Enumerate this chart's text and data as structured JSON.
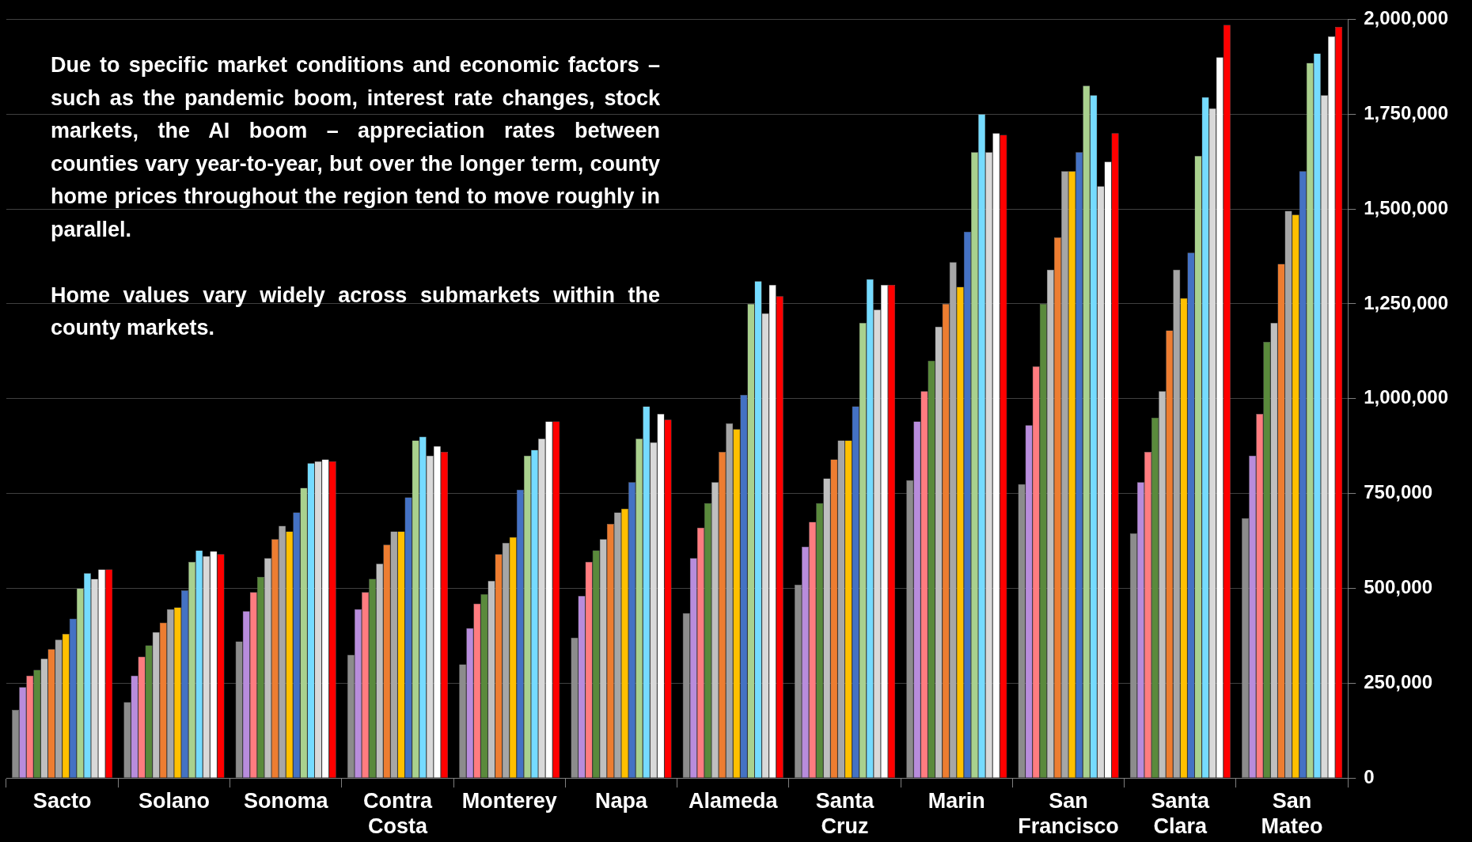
{
  "chart_data": {
    "type": "bar",
    "categories": [
      "Sacto",
      "Solano",
      "Sonoma",
      "Contra Costa",
      "Monterey",
      "Napa",
      "Alameda",
      "Santa Cruz",
      "Marin",
      "San Francisco",
      "Santa Clara",
      "San Mateo"
    ],
    "series": [
      {
        "color": "#8c8c8c",
        "values": [
          180000,
          200000,
          360000,
          325000,
          300000,
          370000,
          435000,
          510000,
          785000,
          775000,
          645000,
          685000
        ]
      },
      {
        "color": "#b88cdc",
        "values": [
          240000,
          270000,
          440000,
          445000,
          395000,
          480000,
          580000,
          610000,
          940000,
          930000,
          780000,
          850000
        ]
      },
      {
        "color": "#ff7c80",
        "values": [
          270000,
          320000,
          490000,
          490000,
          460000,
          570000,
          660000,
          675000,
          1020000,
          1085000,
          860000,
          960000
        ]
      },
      {
        "color": "#5a8a3c",
        "values": [
          285000,
          350000,
          530000,
          525000,
          485000,
          600000,
          725000,
          725000,
          1100000,
          1250000,
          950000,
          1150000
        ]
      },
      {
        "color": "#bfbfbf",
        "values": [
          315000,
          385000,
          580000,
          565000,
          520000,
          630000,
          780000,
          790000,
          1190000,
          1340000,
          1020000,
          1200000
        ]
      },
      {
        "color": "#ed7d31",
        "values": [
          340000,
          410000,
          630000,
          615000,
          590000,
          670000,
          860000,
          840000,
          1250000,
          1425000,
          1180000,
          1355000
        ]
      },
      {
        "color": "#a6a6a6",
        "values": [
          365000,
          445000,
          665000,
          650000,
          620000,
          700000,
          935000,
          890000,
          1360000,
          1600000,
          1340000,
          1495000
        ]
      },
      {
        "color": "#ffc000",
        "values": [
          380000,
          450000,
          650000,
          650000,
          635000,
          710000,
          920000,
          890000,
          1295000,
          1600000,
          1265000,
          1485000
        ]
      },
      {
        "color": "#4472c4",
        "values": [
          420000,
          495000,
          700000,
          740000,
          760000,
          780000,
          1010000,
          980000,
          1440000,
          1650000,
          1385000,
          1600000
        ]
      },
      {
        "color": "#a9d18e",
        "values": [
          500000,
          570000,
          765000,
          890000,
          850000,
          895000,
          1250000,
          1200000,
          1650000,
          1825000,
          1640000,
          1885000
        ]
      },
      {
        "color": "#75dbff",
        "values": [
          540000,
          600000,
          830000,
          900000,
          865000,
          980000,
          1310000,
          1315000,
          1750000,
          1800000,
          1795000,
          1910000
        ]
      },
      {
        "color": "#d9d9d9",
        "values": [
          525000,
          585000,
          835000,
          850000,
          895000,
          885000,
          1225000,
          1235000,
          1650000,
          1560000,
          1765000,
          1800000
        ]
      },
      {
        "color": "#ffffff",
        "values": [
          550000,
          598000,
          840000,
          875000,
          940000,
          960000,
          1300000,
          1300000,
          1700000,
          1625000,
          1900000,
          1955000
        ]
      },
      {
        "color": "#ff0000",
        "values": [
          550000,
          590000,
          835000,
          860000,
          940000,
          945000,
          1270000,
          1300000,
          1695000,
          1700000,
          1985000,
          1980000
        ]
      }
    ],
    "ylim": [
      0,
      2000000
    ],
    "yticks": [
      {
        "value": 0,
        "label": "0"
      },
      {
        "value": 250000,
        "label": "250,000"
      },
      {
        "value": 500000,
        "label": "500,000"
      },
      {
        "value": 750000,
        "label": "750,000"
      },
      {
        "value": 1000000,
        "label": "1,000,000"
      },
      {
        "value": 1250000,
        "label": "1,250,000"
      },
      {
        "value": 1500000,
        "label": "1,500,000"
      },
      {
        "value": 1750000,
        "label": "1,750,000"
      },
      {
        "value": 2000000,
        "label": "2,000,000"
      }
    ],
    "grid": "y",
    "annotations": [
      "Due to specific market conditions and economic factors – such as the pandemic boom, interest rate changes, stock markets, the AI boom – appreciation rates between counties vary year-to-year, but over the longer term, county home prices throughout the region tend to move roughly in parallel.",
      "Home values vary widely across submarkets within the county markets."
    ]
  }
}
